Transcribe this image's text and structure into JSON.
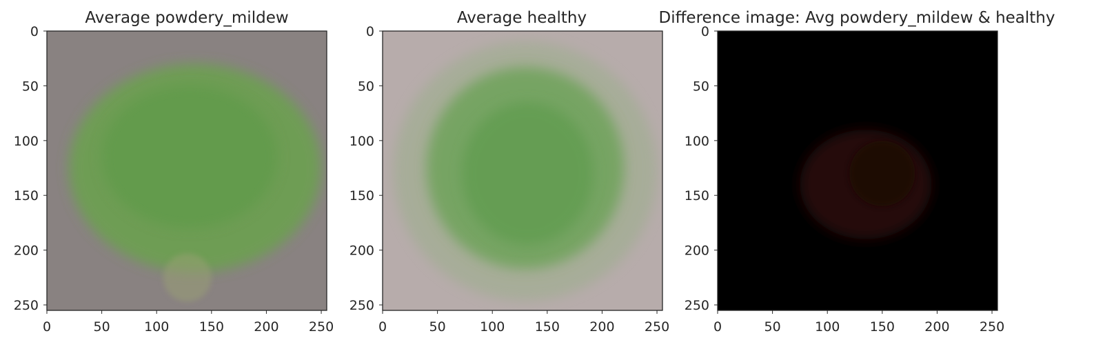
{
  "chart_data": [
    {
      "type": "image",
      "title": "Average powdery_mildew",
      "xlim": [
        0,
        255
      ],
      "ylim": [
        255,
        0
      ],
      "xticks": [
        0,
        50,
        100,
        150,
        200,
        250
      ],
      "yticks": [
        0,
        50,
        100,
        150,
        200,
        250
      ],
      "grid": false,
      "colors": {
        "background": "#898281",
        "leaf": "#6aa24e",
        "leaf_dark": "#5c9a46"
      }
    },
    {
      "type": "image",
      "title": "Average healthy",
      "xlim": [
        0,
        255
      ],
      "ylim": [
        255,
        0
      ],
      "xticks": [
        0,
        50,
        100,
        150,
        200,
        250
      ],
      "yticks": [
        0,
        50,
        100,
        150,
        200,
        250
      ],
      "grid": false,
      "colors": {
        "background": "#b7acab",
        "leaf": "#6ea35a",
        "leaf_dark": "#5a9a4a"
      }
    },
    {
      "type": "image",
      "title": "Difference image: Avg powdery_mildew & healthy",
      "xlim": [
        0,
        255
      ],
      "ylim": [
        255,
        0
      ],
      "xticks": [
        0,
        50,
        100,
        150,
        200,
        250
      ],
      "yticks": [
        0,
        50,
        100,
        150,
        200,
        250
      ],
      "grid": false,
      "colors": {
        "background": "#000000",
        "leaf": "#2a0c08",
        "leaf_dark": "#1a0705"
      }
    }
  ]
}
